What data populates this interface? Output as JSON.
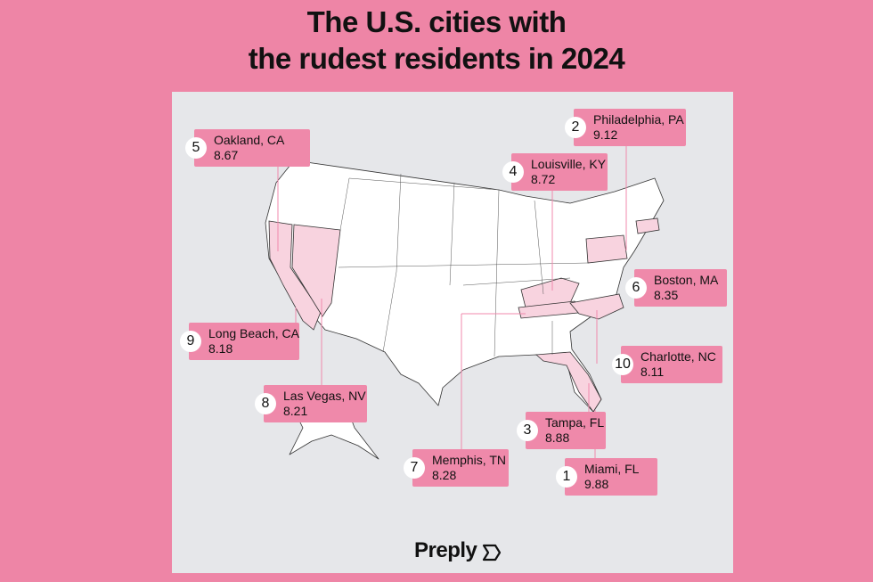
{
  "title": {
    "line1": "The U.S. cities with",
    "line2": "the rudest residents in 2024"
  },
  "brand": "Preply",
  "colors": {
    "background": "#ee85a6",
    "panel": "#e6e7ea",
    "label": "#ef89aa",
    "highlight_state": "#f8d3df",
    "state": "#ffffff"
  },
  "rankings": [
    {
      "rank": "1",
      "city": "Miami, FL",
      "score": "9.88"
    },
    {
      "rank": "2",
      "city": "Philadelphia, PA",
      "score": "9.12"
    },
    {
      "rank": "3",
      "city": "Tampa, FL",
      "score": "8.88"
    },
    {
      "rank": "4",
      "city": "Louisville, KY",
      "score": "8.72"
    },
    {
      "rank": "5",
      "city": "Oakland, CA",
      "score": "8.67"
    },
    {
      "rank": "6",
      "city": "Boston, MA",
      "score": "8.35"
    },
    {
      "rank": "7",
      "city": "Memphis, TN",
      "score": "8.28"
    },
    {
      "rank": "8",
      "city": "Las Vegas, NV",
      "score": "8.21"
    },
    {
      "rank": "9",
      "city": "Long Beach, CA",
      "score": "8.18"
    },
    {
      "rank": "10",
      "city": "Charlotte, NC",
      "score": "8.11"
    }
  ],
  "highlighted_states": [
    "CA",
    "NV",
    "PA",
    "KY",
    "TN",
    "NC",
    "FL",
    "MA"
  ]
}
